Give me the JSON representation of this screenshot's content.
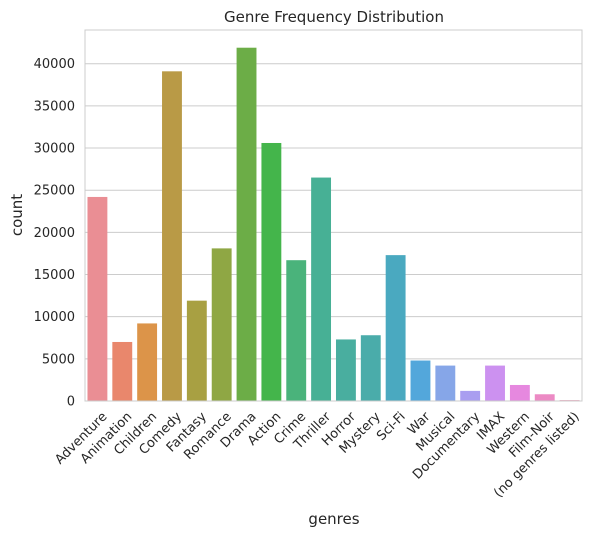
{
  "chart_data": {
    "type": "bar",
    "title": "Genre Frequency Distribution",
    "xlabel": "genres",
    "ylabel": "count",
    "ylim": [
      0,
      44000
    ],
    "yticks": [
      0,
      5000,
      10000,
      15000,
      20000,
      25000,
      30000,
      35000,
      40000
    ],
    "grid": "horizontal",
    "categories": [
      "Adventure",
      "Animation",
      "Children",
      "Comedy",
      "Fantasy",
      "Romance",
      "Drama",
      "Action",
      "Crime",
      "Thriller",
      "Horror",
      "Mystery",
      "Sci-Fi",
      "War",
      "Musical",
      "Documentary",
      "IMAX",
      "Western",
      "Film-Noir",
      "(no genres listed)"
    ],
    "values": [
      24200,
      7000,
      9200,
      39100,
      11900,
      18100,
      41900,
      30600,
      16700,
      26500,
      7300,
      7800,
      17300,
      4800,
      4200,
      1200,
      4200,
      1900,
      800,
      100
    ],
    "colors": [
      "#ea8e94",
      "#e9876c",
      "#dc9449",
      "#b99a46",
      "#a8a042",
      "#8fa744",
      "#6cad47",
      "#44b54b",
      "#4ab37b",
      "#47b095",
      "#49ae9f",
      "#4aacaa",
      "#4aa9c0",
      "#53a7db",
      "#86a6e8",
      "#a99ef0",
      "#cc91f0",
      "#e688df",
      "#ec8ac4",
      "#eb8daa"
    ]
  }
}
